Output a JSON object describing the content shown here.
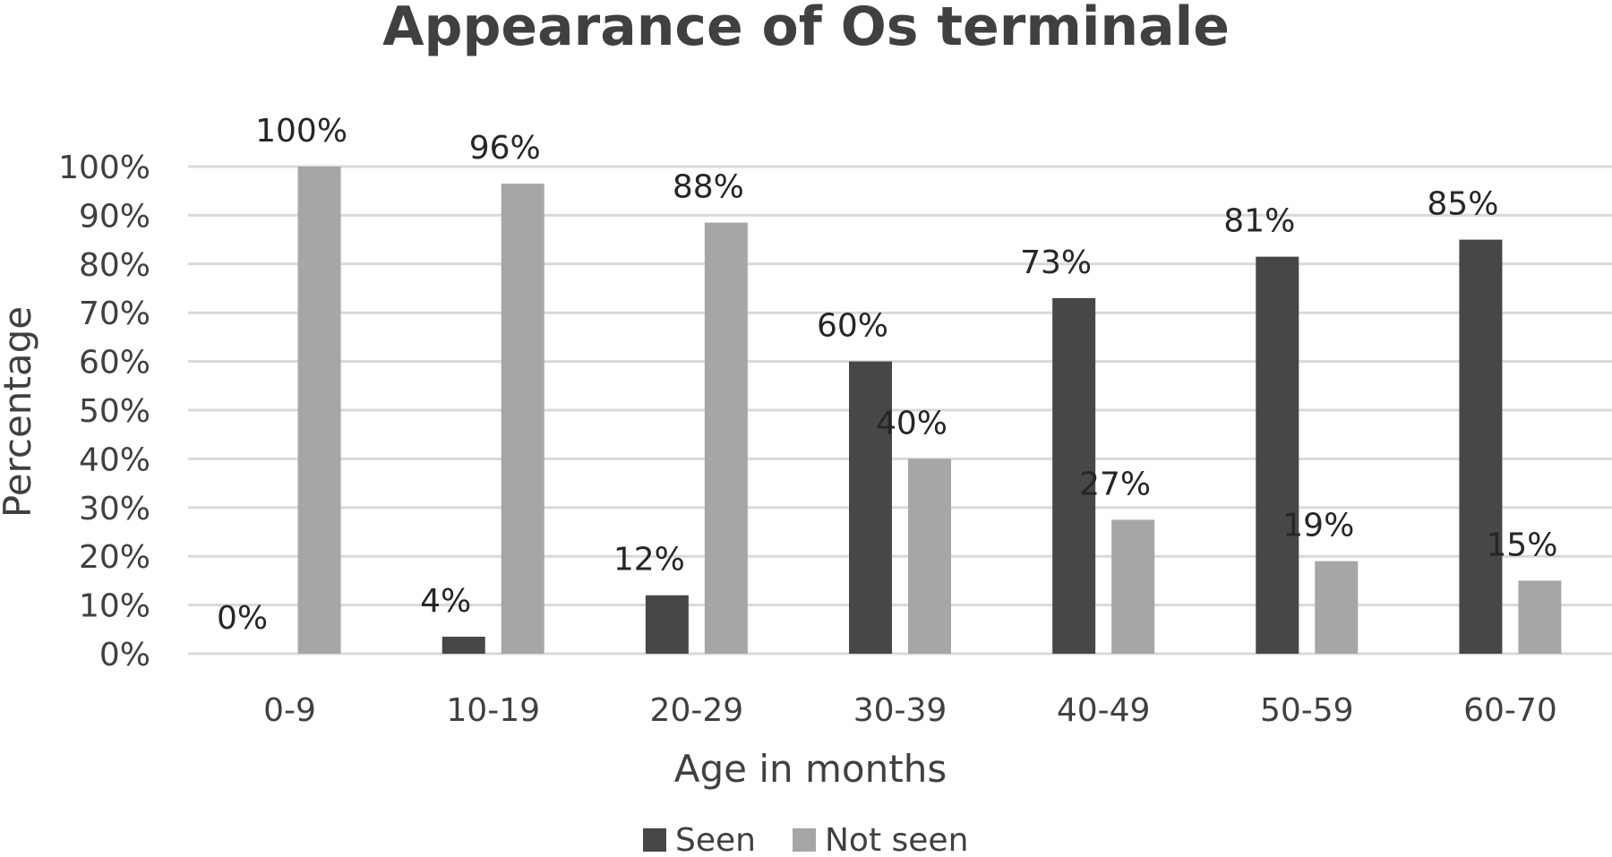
{
  "chart_data": {
    "type": "bar",
    "title": "Appearance  of Os terminale",
    "xlabel": "Age in months",
    "ylabel": "Percentage",
    "categories": [
      "0-9",
      "10-19",
      "20-29",
      "30-39",
      "40-49",
      "50-59",
      "60-70"
    ],
    "series": [
      {
        "name": "Seen",
        "color": "#474747",
        "values": [
          0,
          3.5,
          12,
          60,
          73,
          81.5,
          85
        ],
        "labels": [
          "0%",
          "4%",
          "12%",
          "60%",
          "73%",
          "81%",
          "85%"
        ]
      },
      {
        "name": "Not seen",
        "color": "#a6a6a6",
        "values": [
          100,
          96.5,
          88.5,
          40,
          27.5,
          19,
          15
        ],
        "labels": [
          "100%",
          "96%",
          "88%",
          "40%",
          "27%",
          "19%",
          "15%"
        ]
      }
    ],
    "ylim": [
      0,
      100
    ],
    "yticks": [
      0,
      10,
      20,
      30,
      40,
      50,
      60,
      70,
      80,
      90,
      100
    ],
    "ytick_labels": [
      "0%",
      "10%",
      "20%",
      "30%",
      "40%",
      "50%",
      "60%",
      "70%",
      "80%",
      "90%",
      "100%"
    ],
    "grid": true,
    "legend_position": "bottom"
  }
}
